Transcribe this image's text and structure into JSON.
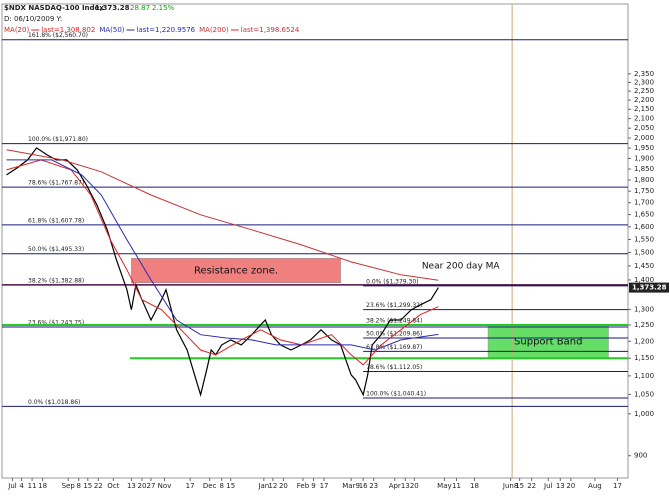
{
  "chart_data": {
    "type": "line",
    "header": {
      "symbol": "$NDX NASDAQ-100 Index",
      "last": "1,373.28",
      "change": "28.87",
      "change_pct": "2.15%",
      "date_line": "D: 06/10/2009  Y:"
    },
    "log_scale": true,
    "xlim": [
      18,
      434
    ],
    "ylim": [
      851,
      2801
    ],
    "xticks": [
      {
        "value": 25,
        "label": "Jul"
      },
      {
        "value": 31,
        "label": "4"
      },
      {
        "value": 38,
        "label": "11"
      },
      {
        "value": 45,
        "label": "18"
      },
      {
        "value": 62,
        "label": "Sep"
      },
      {
        "value": 69,
        "label": "8"
      },
      {
        "value": 75,
        "label": "15"
      },
      {
        "value": 82,
        "label": "22"
      },
      {
        "value": 92,
        "label": "Oct"
      },
      {
        "value": 104,
        "label": "13"
      },
      {
        "value": 111,
        "label": "20"
      },
      {
        "value": 117,
        "label": "27"
      },
      {
        "value": 126,
        "label": "Nov"
      },
      {
        "value": 143,
        "label": "17"
      },
      {
        "value": 156,
        "label": "Dec"
      },
      {
        "value": 164,
        "label": "8"
      },
      {
        "value": 170,
        "label": "15"
      },
      {
        "value": 192,
        "label": "Jan"
      },
      {
        "value": 198,
        "label": "12"
      },
      {
        "value": 205,
        "label": "20"
      },
      {
        "value": 218,
        "label": "Feb"
      },
      {
        "value": 225,
        "label": "9"
      },
      {
        "value": 232,
        "label": "17"
      },
      {
        "value": 250,
        "label": "Mar9"
      },
      {
        "value": 258,
        "label": "16"
      },
      {
        "value": 265,
        "label": "23"
      },
      {
        "value": 279,
        "label": "Apr"
      },
      {
        "value": 286,
        "label": "13"
      },
      {
        "value": 292,
        "label": "20"
      },
      {
        "value": 312,
        "label": "May"
      },
      {
        "value": 320,
        "label": "11"
      },
      {
        "value": 332,
        "label": "18"
      },
      {
        "value": 356,
        "label": "Jun8"
      },
      {
        "value": 362,
        "label": "15"
      },
      {
        "value": 370,
        "label": "22"
      },
      {
        "value": 381,
        "label": "Jul"
      },
      {
        "value": 389,
        "label": "13"
      },
      {
        "value": 396,
        "label": "20"
      },
      {
        "value": 412,
        "label": "Aug"
      },
      {
        "value": 427,
        "label": "17"
      }
    ],
    "yticks": [
      {
        "value": 2350,
        "label": "2,350"
      },
      {
        "value": 2300,
        "label": "2,300"
      },
      {
        "value": 2250,
        "label": "2,250"
      },
      {
        "value": 2200,
        "label": "2,200"
      },
      {
        "value": 2150,
        "label": "2,150"
      },
      {
        "value": 2100,
        "label": "2,100"
      },
      {
        "value": 2050,
        "label": "2,050"
      },
      {
        "value": 2000,
        "label": "2,000"
      },
      {
        "value": 1950,
        "label": "1,950"
      },
      {
        "value": 1900,
        "label": "1,900"
      },
      {
        "value": 1850,
        "label": "1,850"
      },
      {
        "value": 1800,
        "label": "1,800"
      },
      {
        "value": 1750,
        "label": "1,750"
      },
      {
        "value": 1700,
        "label": "1,700"
      },
      {
        "value": 1650,
        "label": "1,650"
      },
      {
        "value": 1600,
        "label": "1,600"
      },
      {
        "value": 1550,
        "label": "1,550"
      },
      {
        "value": 1500,
        "label": "1,500"
      },
      {
        "value": 1450,
        "label": "1,450"
      },
      {
        "value": 1400,
        "label": "1,400"
      },
      {
        "value": 1300,
        "label": "1,300"
      },
      {
        "value": 1250,
        "label": "1,250"
      },
      {
        "value": 1200,
        "label": "1,200"
      },
      {
        "value": 1150,
        "label": "1,150"
      },
      {
        "value": 1100,
        "label": "1,100"
      },
      {
        "value": 1050,
        "label": "1,050"
      },
      {
        "value": 1000,
        "label": "1,000"
      },
      900
    ],
    "series": [
      {
        "color": "#000000",
        "x": [
          21,
          28,
          35,
          41,
          48,
          54,
          61,
          68,
          74,
          81,
          88,
          94,
          101,
          104,
          107,
          111,
          117,
          124,
          127,
          134,
          141,
          147,
          150,
          154,
          157,
          160,
          164,
          170,
          177,
          184,
          190,
          193,
          197,
          203,
          210,
          217,
          223,
          230,
          237,
          243,
          250,
          253,
          258,
          261,
          264,
          270,
          276,
          283,
          290,
          296,
          303,
          308
        ],
        "values": [
          1823,
          1855,
          1893,
          1951,
          1917,
          1893,
          1893,
          1846,
          1778,
          1691,
          1588,
          1473,
          1366,
          1299,
          1383,
          1332,
          1266,
          1332,
          1366,
          1235,
          1174,
          1089,
          1049,
          1117,
          1174,
          1160,
          1189,
          1204,
          1189,
          1220,
          1251,
          1266,
          1220,
          1189,
          1174,
          1189,
          1204,
          1235,
          1204,
          1189,
          1103,
          1089,
          1049,
          1103,
          1189,
          1220,
          1266,
          1266,
          1299,
          1315,
          1332,
          1373.28
        ]
      },
      {
        "name": "MA(20)",
        "legend": "last=1,308.802",
        "color": "#e02020",
        "x": [
          21,
          44,
          64,
          77,
          90,
          101,
          111,
          124,
          137,
          150,
          160,
          177,
          190,
          203,
          217,
          237,
          250,
          258,
          270,
          283,
          296,
          308
        ],
        "values": [
          1846,
          1893,
          1846,
          1733,
          1549,
          1436,
          1332,
          1299,
          1235,
          1174,
          1160,
          1204,
          1235,
          1204,
          1189,
          1220,
          1160,
          1131,
          1189,
          1235,
          1283,
          1308.8
        ]
      },
      {
        "name": "MA(50)",
        "legend": "last=1,220.9576",
        "color": "#2a2ab0",
        "x": [
          21,
          51,
          71,
          84,
          101,
          117,
          134,
          150,
          167,
          184,
          200,
          217,
          233,
          250,
          266,
          283,
          308
        ],
        "values": [
          1893,
          1893,
          1823,
          1733,
          1549,
          1400,
          1266,
          1220,
          1210,
          1204,
          1189,
          1189,
          1189,
          1189,
          1174,
          1204,
          1220.96
        ]
      },
      {
        "name": "MA(200)",
        "legend": "last=1,398.6524",
        "color": "#c83232",
        "x": [
          21,
          58,
          84,
          117,
          150,
          184,
          217,
          250,
          283,
          308
        ],
        "values": [
          1942,
          1893,
          1837,
          1733,
          1649,
          1588,
          1529,
          1465,
          1418,
          1398.65
        ]
      }
    ],
    "fib_levels": [
      {
        "label": "161.8% ($2,560.70)",
        "value": 2560.7
      },
      {
        "label": "100.0% ($1,971.80)",
        "value": 1971.8
      },
      {
        "label": "78.6% ($1,767.87)",
        "value": 1767.87
      },
      {
        "label": "61.8% ($1,607.78)",
        "value": 1607.78
      },
      {
        "label": "50.0% ($1,495.33)",
        "value": 1495.33
      },
      {
        "label": "38.2% ($1,382.88)",
        "value": 1382.88
      },
      {
        "label": "23.6% ($1,243.75)",
        "value": 1243.75
      },
      {
        "label": "0.0% ($1,018.86)",
        "value": 1018.86
      }
    ],
    "fib_levels_2": [
      {
        "label": "0.0% ($1,379.30)",
        "value": 1379.3
      },
      {
        "label": "23.6% ($1,299.32)",
        "value": 1299.32
      },
      {
        "label": "38.2% ($1,249.84)",
        "value": 1249.84
      },
      {
        "label": "50.0% ($1,209.86)",
        "value": 1209.86
      },
      {
        "label": "61.8% ($1,169.87)",
        "value": 1169.87
      },
      {
        "label": "78.6% ($1,112.05)",
        "value": 1112.05
      },
      {
        "label": "100.0% ($1,040.41)",
        "value": 1040.41
      }
    ],
    "support_lines": [
      {
        "value": 1250,
        "from": 18
      },
      {
        "value": 1150,
        "from": 103
      }
    ],
    "zones": [
      {
        "label": "Resistance zone.",
        "x": [
          104,
          243
        ],
        "y": [
          1390,
          1478
        ],
        "color": "#f08080"
      },
      {
        "label": "Support Band",
        "x": [
          341,
          421
        ],
        "y": [
          1150,
          1250
        ],
        "color": "#66dd66"
      }
    ],
    "marker_x": 357,
    "annotation": {
      "text": "Near 200 day MA",
      "x": 297,
      "y": 1450
    }
  }
}
